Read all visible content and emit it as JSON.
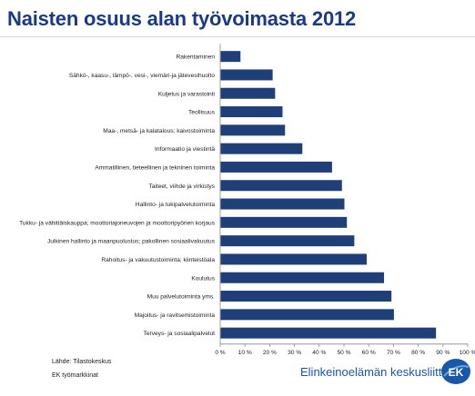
{
  "title": "Naisten osuus alan työvoimasta 2012",
  "chart_data": {
    "type": "bar",
    "orientation": "horizontal",
    "categories": [
      "Rakentaminen",
      "Sähkö-, kaasu-, lämpö-, vesi-, viemäri-ja jätevesihuolto",
      "Kuljetus ja varastointi",
      "Teollisuus",
      "Maa-, metsä- ja kalatalous; kaivostoiminta",
      "Informaatio ja viestintä",
      "Ammatillinen, tieteellinen ja tekninen toiminta",
      "Taiteet, viihde ja virkistys",
      "Hallinto- ja tukipalvelutoiminta",
      "Tukku- ja vähittäiskauppa; moottoriajoneuvojen ja moottoripyörien korjaus",
      "Julkinen hallinto ja maanpuolustus; pakollinen sosiaalivakuutus",
      "Rahoitus- ja vakuutustoiminta; kiinteistöala",
      "Koulutus",
      "Muu palvelutoiminta yms.",
      "Majoitus- ja ravitsemistoiminta",
      "Terveys- ja sosiaalipalvelut"
    ],
    "values": [
      8,
      21,
      22,
      25,
      26,
      33,
      45,
      49,
      50,
      51,
      54,
      59,
      66,
      69,
      70,
      87
    ],
    "xlim": [
      0,
      100
    ],
    "xticks": [
      "0 %",
      "10 %",
      "20 %",
      "30 %",
      "40 %",
      "50 %",
      "60 %",
      "70 %",
      "80 %",
      "90 %",
      "100 %"
    ],
    "bar_color": "#1f3f78",
    "grid": false
  },
  "source": {
    "line1": "Lähde: Tilastokeskus",
    "line2": "EK työmarkkinat"
  },
  "logo": {
    "text": "Elinkeinoelämän keskusliitto",
    "badge": "EK",
    "color": "#1a57a6"
  }
}
